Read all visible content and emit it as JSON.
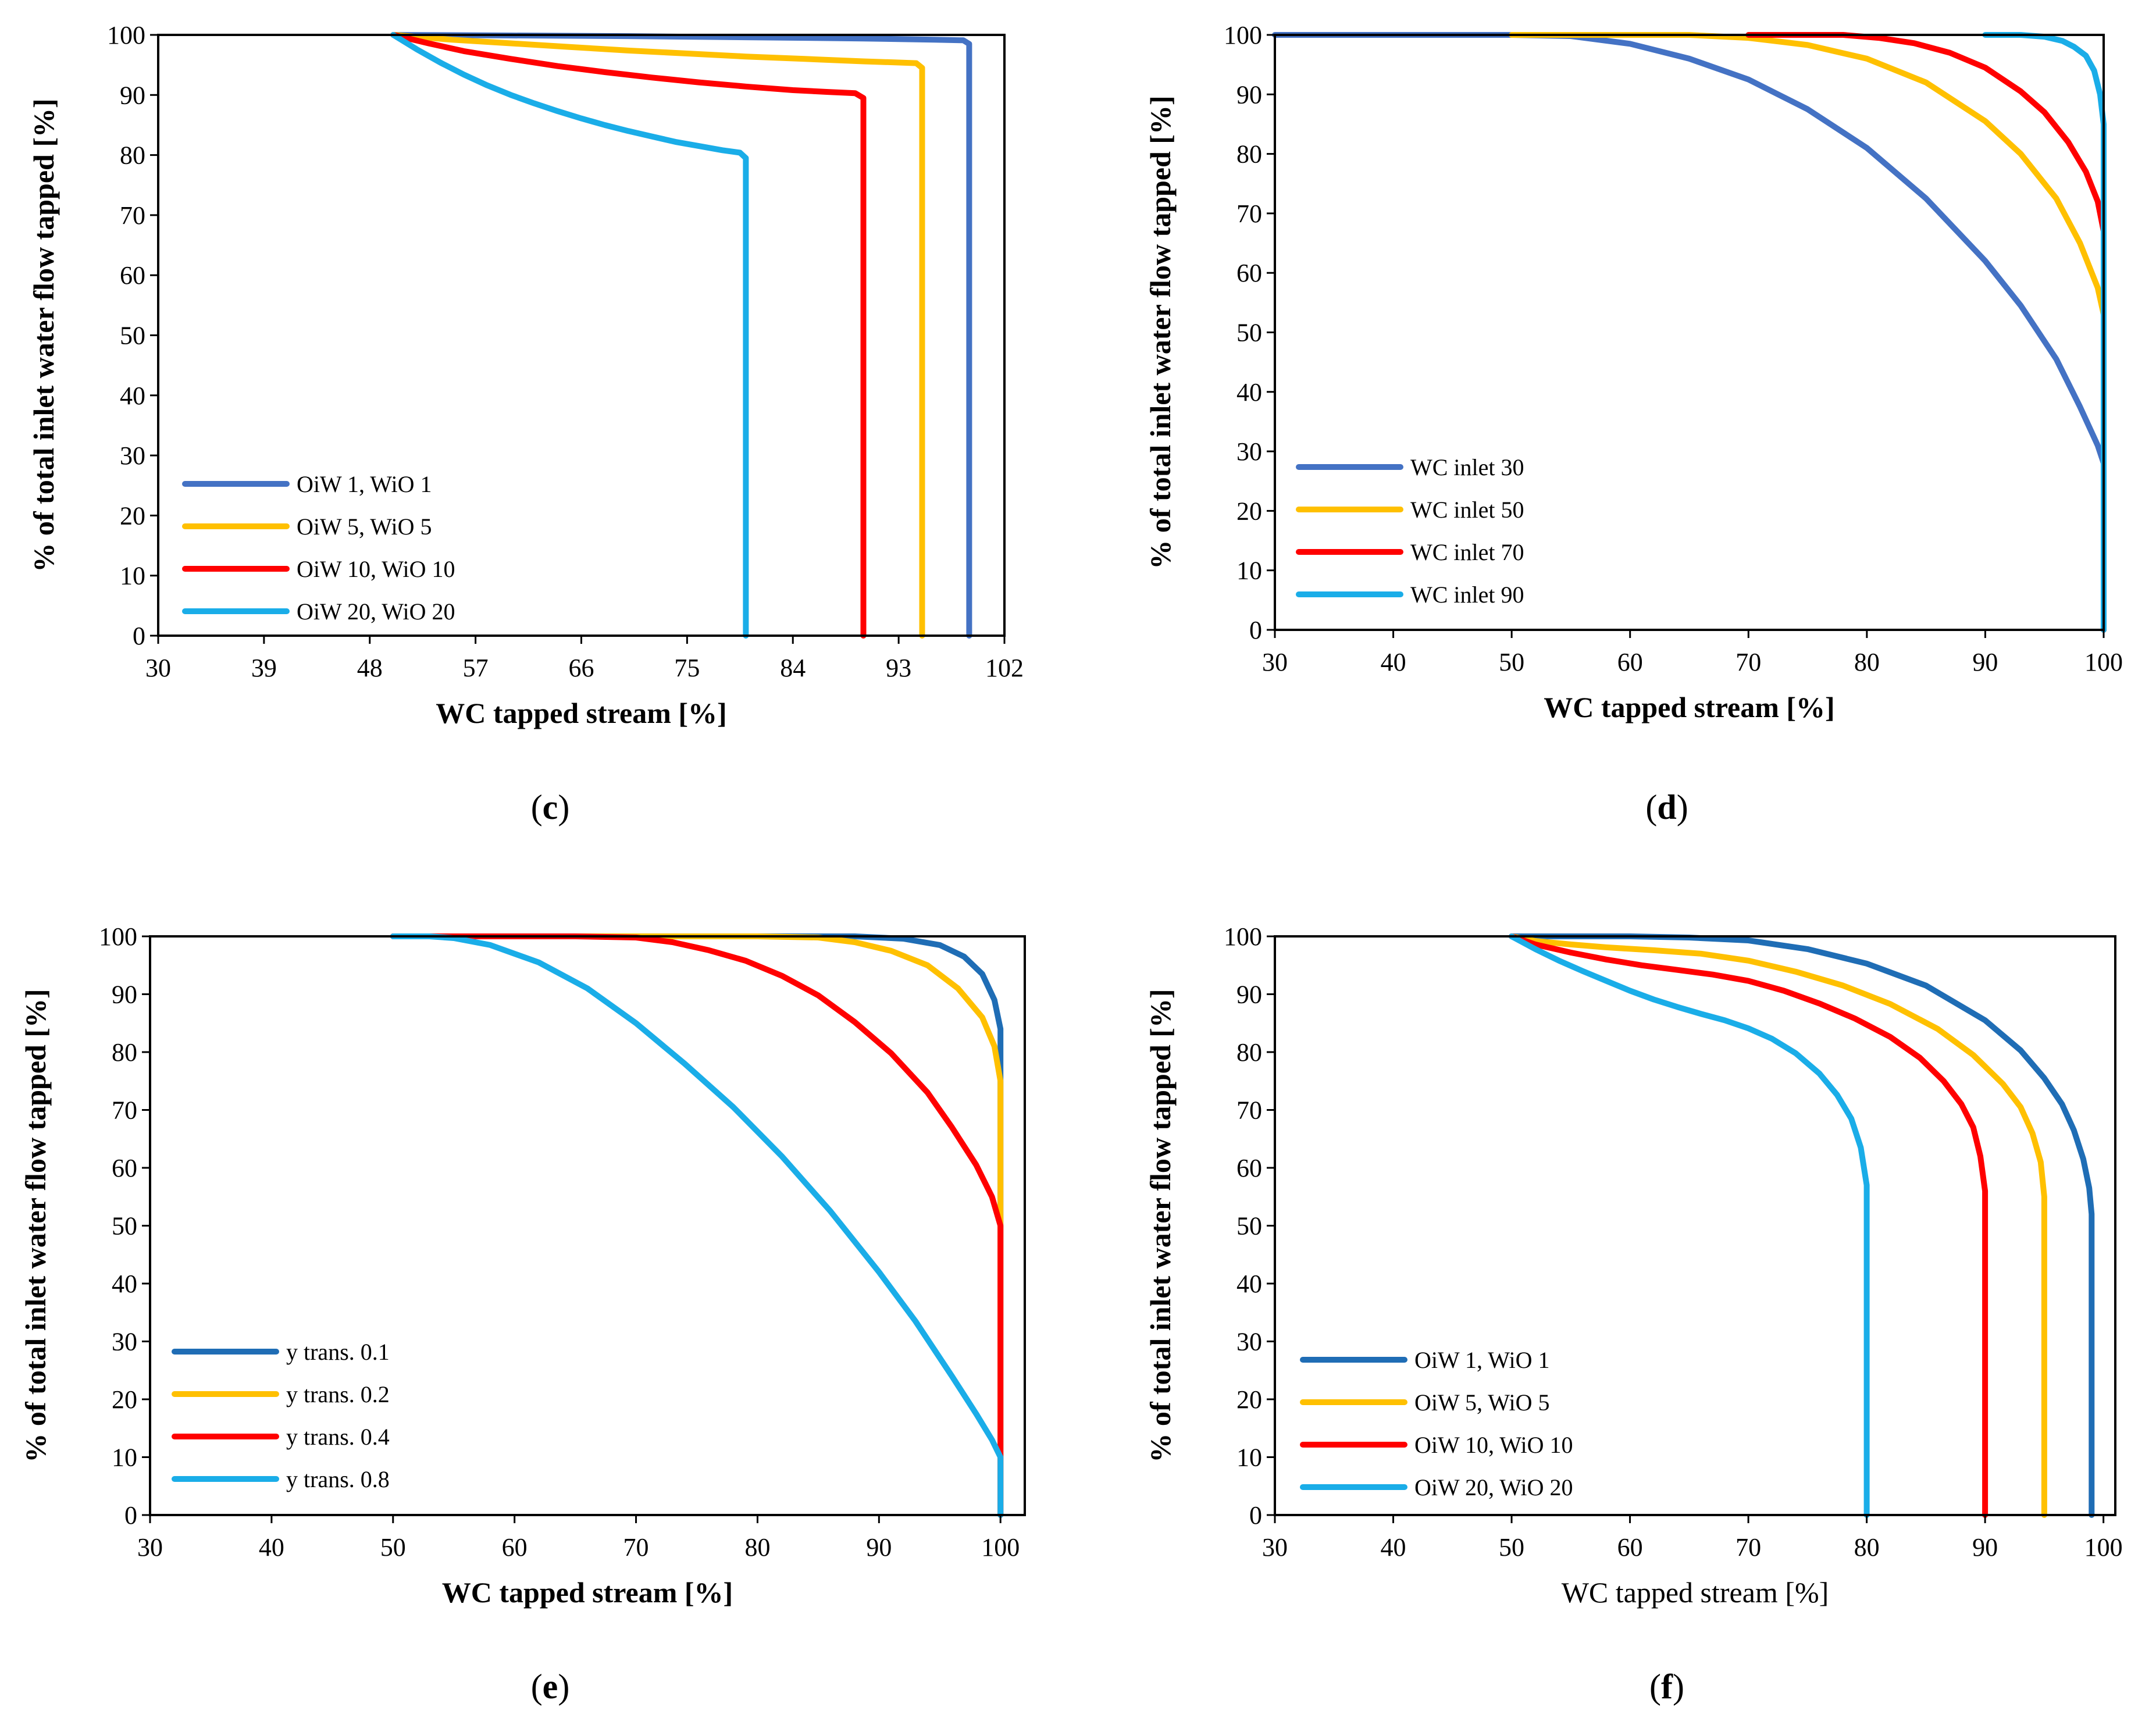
{
  "chart_data": [
    {
      "panel": "c",
      "type": "line",
      "xlabel": "WC tapped stream [%]",
      "ylabel": "% of total inlet water flow tapped [%]",
      "xlim": [
        30,
        102
      ],
      "ylim": [
        0,
        100
      ],
      "xticks": [
        30,
        39,
        48,
        57,
        66,
        75,
        84,
        93,
        102
      ],
      "yticks": [
        0,
        10,
        20,
        30,
        40,
        50,
        60,
        70,
        80,
        90,
        100
      ],
      "grid": false,
      "legend": "bottom-left",
      "series": [
        {
          "name": "OiW 1, WiO 1",
          "color": "#4472C4",
          "x": [
            50,
            60,
            70,
            80,
            90,
            96,
            98.5,
            99,
            99,
            99
          ],
          "y": [
            100,
            99.9,
            99.8,
            99.6,
            99.4,
            99.2,
            99.1,
            98.5,
            50,
            0
          ]
        },
        {
          "name": "OiW 5, WiO 5",
          "color": "#FFC000",
          "x": [
            50,
            55,
            60,
            65,
            70,
            75,
            80,
            85,
            90,
            93,
            94.5,
            95,
            95,
            95
          ],
          "y": [
            100,
            99.2,
            98.6,
            98.0,
            97.4,
            96.9,
            96.4,
            96.0,
            95.6,
            95.4,
            95.3,
            94.5,
            50,
            0
          ]
        },
        {
          "name": "OiW 10, WiO 10",
          "color": "#FF0000",
          "x": [
            50,
            53,
            56,
            60,
            64,
            68,
            72,
            76,
            80,
            84,
            87,
            89.3,
            90,
            90,
            90
          ],
          "y": [
            100,
            98.6,
            97.3,
            96.0,
            94.8,
            93.8,
            92.9,
            92.1,
            91.4,
            90.8,
            90.5,
            90.3,
            89.5,
            50,
            0
          ]
        },
        {
          "name": "OiW 20, WiO 20",
          "color": "#1AADE8",
          "x": [
            50,
            52,
            54,
            56,
            58,
            60,
            62,
            64,
            66,
            68,
            70,
            72,
            74,
            76,
            78,
            79.5,
            80,
            80,
            80
          ],
          "y": [
            100,
            97.6,
            95.4,
            93.4,
            91.6,
            90.0,
            88.6,
            87.3,
            86.1,
            85.0,
            84.0,
            83.1,
            82.2,
            81.5,
            80.8,
            80.4,
            79.5,
            50,
            0
          ]
        }
      ]
    },
    {
      "panel": "d",
      "type": "line",
      "xlabel": "WC tapped stream [%]",
      "ylabel": "% of total inlet water flow tapped [%]",
      "xlim": [
        30,
        100
      ],
      "ylim": [
        0,
        100
      ],
      "xticks": [
        30,
        40,
        50,
        60,
        70,
        80,
        90,
        100
      ],
      "yticks": [
        0,
        10,
        20,
        30,
        40,
        50,
        60,
        70,
        80,
        90,
        100
      ],
      "grid": false,
      "legend": "bottom-left",
      "series": [
        {
          "name": "WC inlet 30",
          "color": "#4472C4",
          "x": [
            30,
            40,
            50,
            55,
            60,
            65,
            70,
            75,
            80,
            85,
            90,
            93,
            96,
            98,
            99.5,
            100,
            100
          ],
          "y": [
            100,
            100,
            100,
            99.8,
            98.5,
            96.0,
            92.5,
            87.5,
            81.0,
            72.5,
            62.0,
            54.5,
            45.5,
            37.5,
            31.0,
            28.0,
            0
          ]
        },
        {
          "name": "WC inlet 50",
          "color": "#FFC000",
          "x": [
            50,
            55,
            60,
            65,
            70,
            75,
            80,
            85,
            90,
            93,
            96,
            98,
            99.5,
            100,
            100
          ],
          "y": [
            100,
            100,
            100,
            100,
            99.5,
            98.3,
            96.0,
            92.0,
            85.5,
            80.0,
            72.5,
            65.0,
            57.5,
            53.0,
            0
          ]
        },
        {
          "name": "WC inlet 70",
          "color": "#FF0000",
          "x": [
            70,
            75,
            78,
            81,
            84,
            87,
            90,
            93,
            95,
            97,
            98.5,
            99.5,
            100,
            100
          ],
          "y": [
            100,
            100,
            100,
            99.5,
            98.6,
            97.0,
            94.5,
            90.5,
            87.0,
            82.0,
            77.0,
            72.0,
            67.0,
            0
          ]
        },
        {
          "name": "WC inlet 90",
          "color": "#1AADE8",
          "x": [
            90,
            93,
            95,
            96.5,
            97.5,
            98.5,
            99.2,
            99.7,
            100,
            100
          ],
          "y": [
            100,
            100,
            99.7,
            99.0,
            98.0,
            96.5,
            94.0,
            90.0,
            85.0,
            0
          ]
        }
      ]
    },
    {
      "panel": "e",
      "type": "line",
      "xlabel": "WC tapped stream [%]",
      "ylabel": "% of total inlet water flow tapped [%]",
      "xlim": [
        30,
        102
      ],
      "ylim": [
        0,
        100
      ],
      "xticks": [
        30,
        40,
        50,
        60,
        70,
        80,
        90,
        100
      ],
      "yticks": [
        0,
        10,
        20,
        30,
        40,
        50,
        60,
        70,
        80,
        90,
        100
      ],
      "grid": false,
      "legend": "bottom-left",
      "series": [
        {
          "name": "y trans. 0.1",
          "color": "#1F6DB5",
          "x": [
            50,
            60,
            70,
            80,
            88,
            92,
            95,
            97,
            98.5,
            99.5,
            100,
            100
          ],
          "y": [
            100,
            100,
            100,
            100,
            100,
            99.6,
            98.5,
            96.5,
            93.5,
            89.0,
            84.0,
            0
          ]
        },
        {
          "name": "y trans. 0.2",
          "color": "#FFC000",
          "x": [
            50,
            60,
            70,
            80,
            85,
            88,
            91,
            94,
            96.5,
            98.5,
            99.5,
            100,
            100
          ],
          "y": [
            100,
            100,
            100,
            100,
            99.8,
            99.0,
            97.5,
            95.0,
            91.0,
            86.0,
            81.0,
            75.0,
            0
          ]
        },
        {
          "name": "y trans. 0.4",
          "color": "#FF0000",
          "x": [
            50,
            55,
            60,
            65,
            70,
            73,
            76,
            79,
            82,
            85,
            88,
            91,
            94,
            96,
            98,
            99.3,
            100,
            100
          ],
          "y": [
            100,
            100,
            100,
            100,
            99.8,
            99.0,
            97.6,
            95.8,
            93.2,
            89.8,
            85.2,
            79.8,
            73.0,
            67.0,
            60.5,
            55.0,
            50.0,
            0
          ]
        },
        {
          "name": "y trans. 0.8",
          "color": "#1AADE8",
          "x": [
            50,
            53,
            55,
            58,
            62,
            66,
            70,
            74,
            78,
            82,
            86,
            90,
            93,
            96,
            98,
            99.3,
            100,
            100
          ],
          "y": [
            100,
            100,
            99.7,
            98.5,
            95.5,
            91.0,
            85.0,
            78.0,
            70.5,
            62.0,
            52.5,
            42.0,
            33.5,
            24.0,
            17.5,
            13.0,
            10.0,
            0
          ]
        }
      ]
    },
    {
      "panel": "f",
      "type": "line",
      "xlabel": "WC tapped stream [%]",
      "ylabel": "% of total inlet water flow tapped [%]",
      "xlim": [
        30,
        101
      ],
      "ylim": [
        0,
        100
      ],
      "xticks": [
        30,
        40,
        50,
        60,
        70,
        80,
        90,
        100
      ],
      "yticks": [
        0,
        10,
        20,
        30,
        40,
        50,
        60,
        70,
        80,
        90,
        100
      ],
      "grid": false,
      "legend": "bottom-left",
      "series": [
        {
          "name": "OiW 1, WiO 1",
          "color": "#1F6DB5",
          "x": [
            50,
            56,
            60,
            65,
            70,
            75,
            80,
            85,
            90,
            93,
            95,
            96.5,
            97.5,
            98.3,
            98.8,
            99,
            99
          ],
          "y": [
            100,
            100,
            100,
            99.8,
            99.3,
            97.8,
            95.3,
            91.5,
            85.5,
            80.3,
            75.5,
            71.0,
            66.5,
            61.5,
            56.5,
            52.0,
            0
          ]
        },
        {
          "name": "OiW 5, WiO 5",
          "color": "#FFC000",
          "x": [
            50,
            52,
            55,
            58,
            62,
            66,
            70,
            74,
            78,
            82,
            86,
            89,
            91.5,
            93,
            94,
            94.7,
            95,
            95
          ],
          "y": [
            100,
            99.2,
            98.6,
            98.1,
            97.6,
            97.0,
            95.8,
            93.9,
            91.5,
            88.3,
            84.0,
            79.5,
            74.5,
            70.5,
            66.0,
            61.0,
            55.0,
            0
          ]
        },
        {
          "name": "OiW 10, WiO 10",
          "color": "#FF0000",
          "x": [
            50,
            52,
            55,
            58,
            61,
            64,
            67,
            70,
            73,
            76,
            79,
            82,
            84.5,
            86.5,
            88,
            89,
            89.6,
            90,
            90
          ],
          "y": [
            100,
            98.6,
            97.2,
            96.0,
            95.0,
            94.2,
            93.4,
            92.3,
            90.6,
            88.4,
            85.8,
            82.6,
            79.0,
            75.0,
            71.0,
            67.0,
            62.0,
            56.0,
            0
          ]
        },
        {
          "name": "OiW 20, WiO 20",
          "color": "#1AADE8",
          "x": [
            50,
            52,
            54,
            56,
            58,
            60,
            62,
            64,
            66,
            68,
            70,
            72,
            74,
            76,
            77.5,
            78.7,
            79.5,
            80,
            80
          ],
          "y": [
            100,
            97.8,
            95.8,
            94.0,
            92.3,
            90.6,
            89.1,
            87.8,
            86.6,
            85.5,
            84.1,
            82.3,
            79.8,
            76.3,
            72.6,
            68.5,
            63.5,
            57.0,
            0
          ]
        }
      ]
    }
  ]
}
